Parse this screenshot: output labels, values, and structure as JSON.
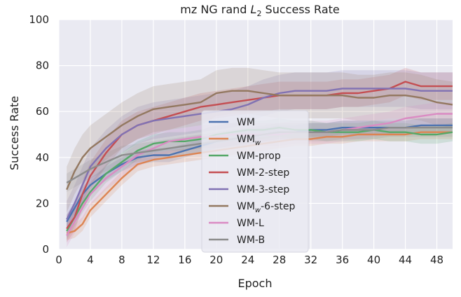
{
  "chart_data": {
    "type": "line",
    "title_prefix": "mz NG rand ",
    "title_var": "L",
    "title_sub": "2",
    "title_suffix": " Success Rate",
    "xlabel": "Epoch",
    "ylabel": "Success Rate",
    "xlim": [
      0,
      50
    ],
    "ylim": [
      0,
      100
    ],
    "xticks": [
      0,
      4,
      8,
      12,
      16,
      20,
      24,
      28,
      32,
      36,
      40,
      44,
      48
    ],
    "yticks": [
      0,
      20,
      40,
      60,
      80,
      100
    ],
    "grid": true,
    "legend_position": "center",
    "background": "#eaeaf2",
    "series": [
      {
        "name_main": "WM",
        "name_sub": "",
        "name_rest": "",
        "color": "#4c72b0",
        "x": [
          1,
          2,
          3,
          4,
          6,
          8,
          10,
          12,
          14,
          16,
          18,
          20,
          22,
          24,
          26,
          28,
          30,
          32,
          34,
          36,
          38,
          40,
          42,
          44,
          46,
          48,
          50
        ],
        "values": [
          12,
          18,
          24,
          28,
          33,
          37,
          40,
          41,
          41,
          43,
          45,
          47,
          48,
          49,
          50,
          51,
          51,
          52,
          52,
          53,
          53,
          53,
          53,
          53,
          54,
          54,
          54
        ],
        "spread": 3
      },
      {
        "name_main": "WM",
        "name_sub": "w",
        "name_rest": "",
        "color": "#dd8452",
        "x": [
          1,
          2,
          3,
          4,
          6,
          8,
          10,
          12,
          14,
          16,
          18,
          20,
          22,
          24,
          26,
          28,
          30,
          32,
          34,
          36,
          38,
          40,
          42,
          44,
          46,
          48,
          50
        ],
        "values": [
          7,
          8,
          11,
          17,
          24,
          31,
          37,
          39,
          40,
          41,
          42,
          43,
          44,
          45,
          46,
          47,
          48,
          48,
          49,
          49,
          50,
          50,
          50,
          50,
          51,
          51,
          51
        ],
        "spread": 3
      },
      {
        "name_main": "WM-prop",
        "name_sub": "",
        "name_rest": "",
        "color": "#55a868",
        "x": [
          1,
          2,
          3,
          4,
          6,
          8,
          10,
          12,
          14,
          16,
          18,
          20,
          22,
          24,
          26,
          28,
          30,
          32,
          34,
          36,
          38,
          40,
          42,
          44,
          46,
          48,
          50
        ],
        "values": [
          8,
          14,
          20,
          25,
          33,
          38,
          43,
          46,
          47,
          47,
          48,
          50,
          51,
          52,
          52,
          53,
          52,
          52,
          51,
          51,
          51,
          52,
          51,
          51,
          50,
          50,
          51
        ],
        "spread": 4
      },
      {
        "name_main": "WM-2-step",
        "name_sub": "",
        "name_rest": "",
        "color": "#c44e52",
        "x": [
          1,
          2,
          3,
          4,
          6,
          8,
          10,
          12,
          14,
          16,
          18,
          20,
          22,
          24,
          26,
          28,
          30,
          32,
          34,
          36,
          38,
          40,
          42,
          44,
          46,
          48,
          50
        ],
        "values": [
          9,
          14,
          24,
          32,
          42,
          50,
          54,
          56,
          58,
          60,
          62,
          63,
          64,
          65,
          66,
          67,
          67,
          67,
          67,
          68,
          68,
          69,
          70,
          73,
          71,
          71,
          71
        ],
        "spread": 6
      },
      {
        "name_main": "WM-3-step",
        "name_sub": "",
        "name_rest": "",
        "color": "#8172b3",
        "x": [
          1,
          2,
          3,
          4,
          6,
          8,
          10,
          12,
          14,
          16,
          18,
          20,
          22,
          24,
          26,
          28,
          30,
          32,
          34,
          36,
          38,
          40,
          42,
          44,
          46,
          48,
          50
        ],
        "values": [
          13,
          20,
          28,
          36,
          44,
          50,
          54,
          56,
          57,
          58,
          59,
          60,
          61,
          63,
          66,
          68,
          69,
          69,
          69,
          70,
          70,
          70,
          70,
          70,
          69,
          69,
          69
        ],
        "spread": 8
      },
      {
        "name_main": "WM",
        "name_sub": "w",
        "name_rest": "-6-step",
        "color": "#937860",
        "x": [
          1,
          2,
          3,
          4,
          6,
          8,
          10,
          12,
          14,
          16,
          18,
          20,
          22,
          24,
          26,
          28,
          30,
          32,
          34,
          36,
          38,
          40,
          42,
          44,
          46,
          48,
          50
        ],
        "values": [
          26,
          34,
          40,
          44,
          49,
          54,
          58,
          61,
          62,
          63,
          64,
          68,
          69,
          69,
          68,
          67,
          67,
          67,
          67,
          67,
          66,
          66,
          67,
          67,
          66,
          64,
          63
        ],
        "spread": 10
      },
      {
        "name_main": "WM-L",
        "name_sub": "",
        "name_rest": "",
        "color": "#da8bc3",
        "x": [
          1,
          2,
          3,
          4,
          6,
          8,
          10,
          12,
          14,
          16,
          18,
          20,
          22,
          24,
          26,
          28,
          30,
          32,
          34,
          36,
          38,
          40,
          42,
          44,
          46,
          48,
          50
        ],
        "values": [
          6,
          12,
          18,
          24,
          31,
          36,
          41,
          44,
          47,
          48,
          49,
          49,
          50,
          50,
          50,
          50,
          51,
          51,
          51,
          52,
          53,
          54,
          55,
          57,
          58,
          59,
          59
        ],
        "spread": 5
      },
      {
        "name_main": "WM-B",
        "name_sub": "",
        "name_rest": "",
        "color": "#8c8c8c",
        "x": [
          1,
          2,
          3,
          4,
          6,
          8,
          10,
          12,
          14,
          16,
          18,
          20,
          22,
          24,
          26,
          28,
          30,
          32,
          34,
          36,
          38,
          40,
          42,
          44,
          46,
          48,
          50
        ],
        "values": [
          29,
          31,
          33,
          35,
          38,
          41,
          42,
          43,
          44,
          45,
          46,
          47,
          48,
          49,
          50,
          51,
          51,
          51,
          51,
          52,
          52,
          52,
          53,
          53,
          53,
          53,
          53
        ],
        "spread": 4
      }
    ]
  }
}
